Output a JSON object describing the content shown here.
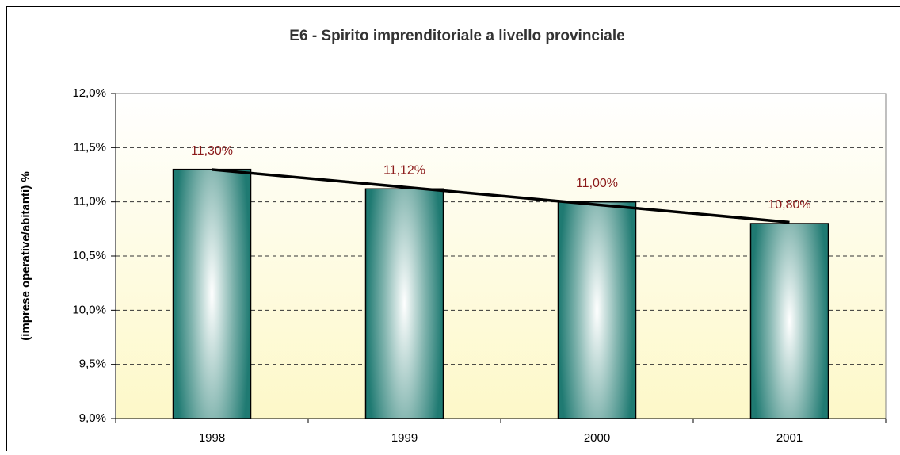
{
  "chart_data": {
    "type": "bar",
    "title": "E6 - Spirito imprenditoriale a livello provinciale",
    "y_label": "(imprese operative/abitanti) %",
    "categories": [
      "1998",
      "1999",
      "2000",
      "2001"
    ],
    "values": [
      11.3,
      11.12,
      11.0,
      10.8
    ],
    "value_labels": [
      "11,30%",
      "11,12%",
      "11,00%",
      "10,80%"
    ],
    "color": "#1f7a72",
    "ylim": [
      9,
      12
    ],
    "yticks": [
      {
        "value": 9,
        "label": "9,0%"
      },
      {
        "value": 9.5,
        "label": "9,5%"
      },
      {
        "value": 10,
        "label": "10,0%"
      },
      {
        "value": 10.5,
        "label": "10,5%"
      },
      {
        "value": 11,
        "label": "11,0%"
      },
      {
        "value": 11.5,
        "label": "11,5%"
      },
      {
        "value": 12,
        "label": "12,0%"
      }
    ],
    "grid": true,
    "trendline": true
  }
}
